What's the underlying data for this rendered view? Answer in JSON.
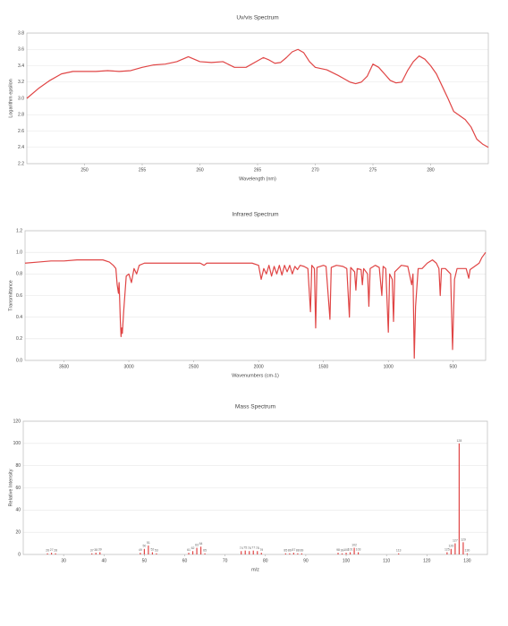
{
  "chart_data": [
    {
      "type": "line",
      "title": "Uv/vis Spectrum",
      "xlabel": "Wavelength (nm)",
      "ylabel": "Logarithm epsilon",
      "color": "#e04545",
      "grid": true,
      "xlim": [
        245,
        285
      ],
      "xticks": [
        250,
        255,
        260,
        265,
        270,
        275,
        280
      ],
      "ylim": [
        2.2,
        3.8
      ],
      "yticks": [
        2.2,
        2.4,
        2.6,
        2.8,
        {
          "value": 3,
          "label": "3.0"
        },
        3.2,
        3.4,
        3.6,
        3.8
      ],
      "x": [
        245,
        246,
        247,
        248,
        249,
        250,
        251,
        252,
        253,
        254,
        255,
        256,
        257,
        258,
        259,
        260,
        261,
        262,
        263,
        264,
        265,
        265.5,
        266,
        266.5,
        267,
        267.5,
        268,
        268.5,
        269,
        269.5,
        270,
        271,
        272,
        273,
        273.5,
        274,
        274.5,
        275,
        275.5,
        276,
        276.5,
        277,
        277.5,
        278,
        278.5,
        279,
        279.5,
        280,
        280.5,
        281,
        281.5,
        282,
        283,
        283.5,
        284,
        284.5,
        285
      ],
      "values": [
        3.0,
        3.12,
        3.22,
        3.3,
        3.33,
        3.33,
        3.33,
        3.34,
        3.33,
        3.34,
        3.38,
        3.41,
        3.42,
        3.45,
        3.51,
        3.45,
        3.44,
        3.45,
        3.38,
        3.38,
        3.46,
        3.5,
        3.47,
        3.43,
        3.44,
        3.5,
        3.57,
        3.6,
        3.56,
        3.45,
        3.38,
        3.35,
        3.28,
        3.2,
        3.18,
        3.2,
        3.27,
        3.42,
        3.38,
        3.3,
        3.22,
        3.19,
        3.2,
        3.34,
        3.45,
        3.52,
        3.48,
        3.4,
        3.3,
        3.15,
        3.0,
        2.84,
        2.74,
        2.65,
        2.5,
        2.44,
        2.4
      ]
    },
    {
      "type": "line",
      "title": "Infrared Spectrum",
      "xlabel": "Wavenumbers (cm-1)",
      "ylabel": "Transmittance",
      "color": "#e04545",
      "grid": true,
      "xlim": [
        3800,
        250
      ],
      "xticks": [
        3500,
        3000,
        2500,
        2000,
        1500,
        1000,
        500
      ],
      "ylim": [
        0,
        1.2
      ],
      "yticks": [
        {
          "value": 0,
          "label": "0.0"
        },
        0.2,
        0.4,
        0.6,
        0.8,
        {
          "value": 1,
          "label": "1.0"
        },
        1.2
      ],
      "x": [
        3800,
        3700,
        3600,
        3500,
        3400,
        3300,
        3200,
        3150,
        3120,
        3100,
        3090,
        3080,
        3075,
        3065,
        3060,
        3055,
        3050,
        3040,
        3020,
        3000,
        2980,
        2960,
        2940,
        2920,
        2880,
        2800,
        2600,
        2450,
        2420,
        2400,
        2200,
        2050,
        2000,
        1980,
        1960,
        1940,
        1920,
        1900,
        1880,
        1860,
        1840,
        1820,
        1800,
        1780,
        1760,
        1740,
        1720,
        1700,
        1680,
        1650,
        1620,
        1600,
        1590,
        1570,
        1560,
        1550,
        1500,
        1480,
        1450,
        1440,
        1400,
        1350,
        1320,
        1300,
        1290,
        1260,
        1250,
        1240,
        1210,
        1200,
        1190,
        1160,
        1150,
        1140,
        1100,
        1070,
        1050,
        1040,
        1020,
        1000,
        990,
        970,
        960,
        950,
        900,
        850,
        820,
        810,
        800,
        790,
        770,
        740,
        700,
        660,
        630,
        610,
        600,
        590,
        560,
        520,
        505,
        490,
        470,
        400,
        380,
        370,
        300,
        280,
        250
      ],
      "values": [
        0.9,
        0.91,
        0.92,
        0.92,
        0.93,
        0.93,
        0.93,
        0.91,
        0.88,
        0.85,
        0.7,
        0.62,
        0.72,
        0.35,
        0.22,
        0.3,
        0.25,
        0.45,
        0.78,
        0.8,
        0.72,
        0.85,
        0.8,
        0.88,
        0.9,
        0.9,
        0.9,
        0.9,
        0.88,
        0.9,
        0.9,
        0.9,
        0.88,
        0.75,
        0.85,
        0.8,
        0.88,
        0.78,
        0.87,
        0.8,
        0.88,
        0.79,
        0.88,
        0.82,
        0.88,
        0.8,
        0.87,
        0.84,
        0.88,
        0.87,
        0.85,
        0.45,
        0.88,
        0.85,
        0.3,
        0.86,
        0.88,
        0.87,
        0.38,
        0.86,
        0.88,
        0.87,
        0.85,
        0.4,
        0.86,
        0.82,
        0.65,
        0.85,
        0.84,
        0.7,
        0.85,
        0.8,
        0.5,
        0.85,
        0.88,
        0.86,
        0.6,
        0.87,
        0.85,
        0.26,
        0.8,
        0.75,
        0.36,
        0.82,
        0.88,
        0.87,
        0.7,
        0.8,
        0.02,
        0.5,
        0.85,
        0.85,
        0.9,
        0.93,
        0.9,
        0.85,
        0.6,
        0.85,
        0.85,
        0.8,
        0.1,
        0.75,
        0.85,
        0.85,
        0.76,
        0.84,
        0.9,
        0.95,
        1.0
      ]
    },
    {
      "type": "bar",
      "title": "Mass Spectrum",
      "xlabel": "m/z",
      "ylabel": "Relative Intensity",
      "color": "#e04545",
      "grid": true,
      "xlim": [
        20,
        135
      ],
      "xticks": [
        30,
        40,
        50,
        60,
        70,
        80,
        90,
        100,
        110,
        120,
        130
      ],
      "ylim": [
        0,
        120
      ],
      "yticks": [
        0,
        20,
        40,
        60,
        80,
        100,
        120
      ],
      "x": [
        26,
        27,
        28,
        37,
        38,
        39,
        49,
        50,
        51,
        52,
        53,
        61,
        62,
        63,
        64,
        65,
        74,
        75,
        76,
        77,
        78,
        79,
        85,
        86,
        87,
        88,
        89,
        98,
        99,
        100,
        101,
        102,
        103,
        113,
        125,
        126,
        127,
        128,
        129,
        130
      ],
      "values": [
        1,
        1.5,
        1,
        1,
        1.5,
        2,
        1.5,
        5,
        8,
        2,
        1,
        1.5,
        3,
        6,
        7,
        1,
        3,
        3.5,
        3,
        3.5,
        3,
        1.5,
        1,
        1,
        1.5,
        1,
        1,
        1.5,
        1,
        1.5,
        2,
        6,
        2,
        1,
        2,
        5,
        10,
        100,
        11,
        1
      ]
    }
  ]
}
